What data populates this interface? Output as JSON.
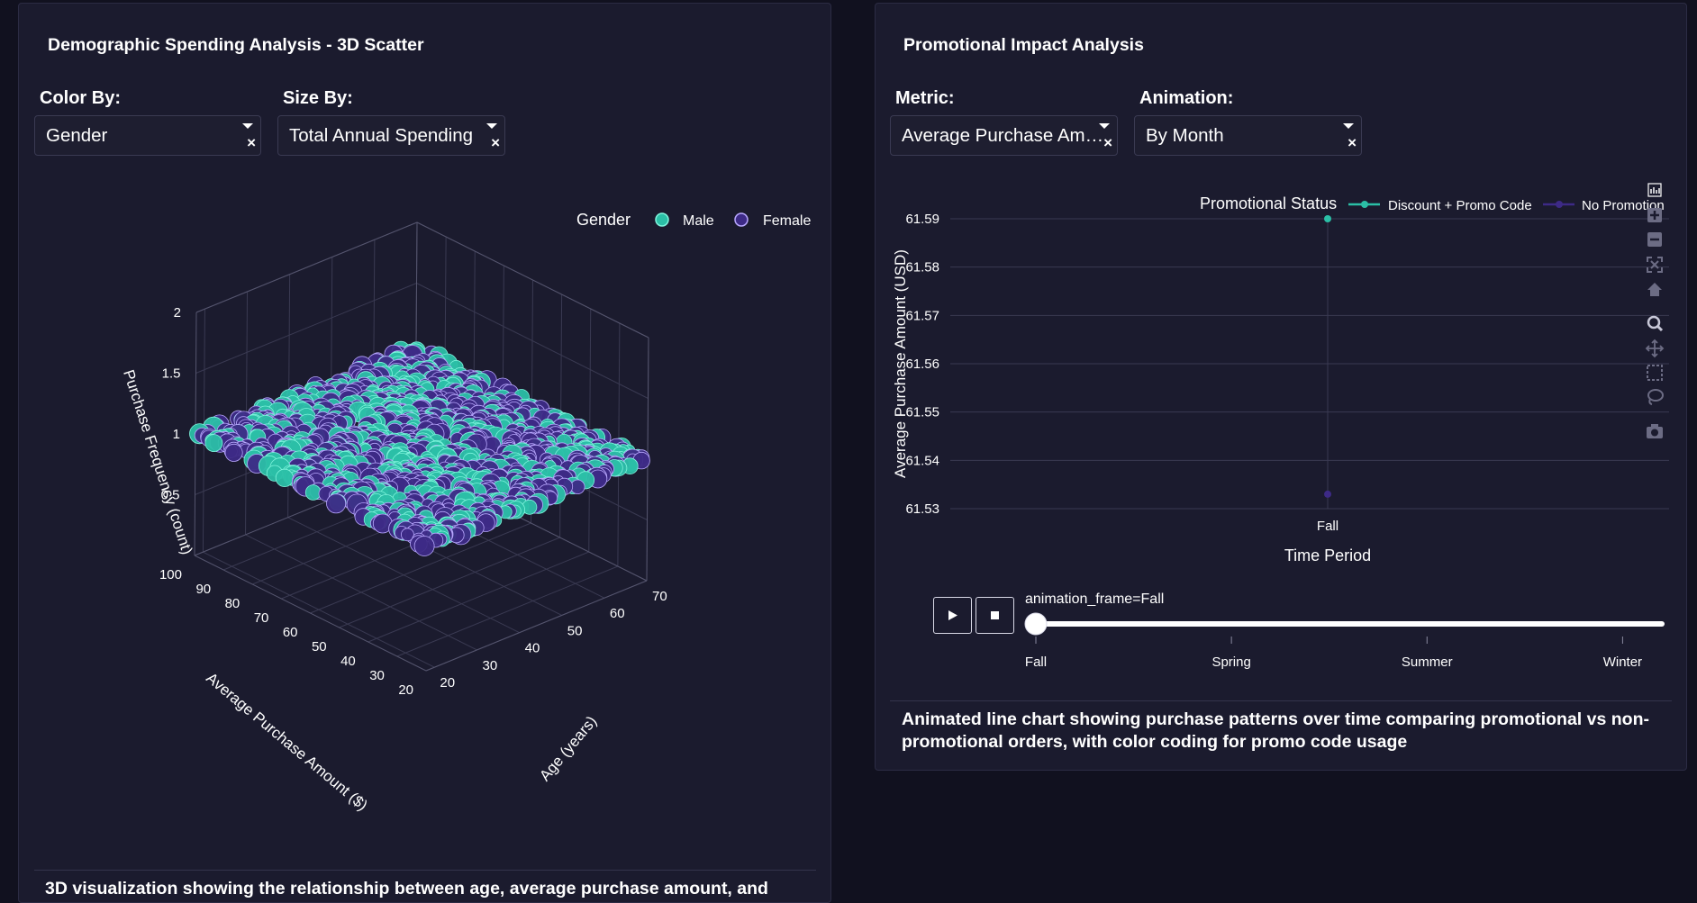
{
  "left_panel": {
    "title": "Demographic Spending Analysis - 3D Scatter",
    "color_by": {
      "label": "Color By:",
      "value": "Gender"
    },
    "size_by": {
      "label": "Size By:",
      "value": "Total Annual Spending"
    },
    "description": "3D visualization showing the relationship between age, average purchase amount, and"
  },
  "right_panel": {
    "title": "Promotional Impact Analysis",
    "metric": {
      "label": "Metric:",
      "value": "Average Purchase Amount (USD)"
    },
    "animation": {
      "label": "Animation:",
      "value": "By Month"
    },
    "description_line1": "Animated line chart showing purchase patterns over time comparing promotional vs non-",
    "description_line2": "promotional orders, with color coding for promo code usage",
    "slider": {
      "current_label": "animation_frame=Fall",
      "steps": [
        "Fall",
        "Spring",
        "Summer",
        "Winter"
      ],
      "value": "Fall"
    },
    "modebar_icons": [
      "plotly-logo-icon",
      "zoom-in-icon",
      "zoom-out-icon",
      "autoscale-icon",
      "home-icon",
      "zoom-icon",
      "pan-icon",
      "box-select-icon",
      "lasso-select-icon",
      "camera-icon"
    ]
  },
  "colors": {
    "male": "#2bbfa6",
    "female": "#3d2a86",
    "background": "#11111f",
    "panel": "#1b1b2e"
  },
  "chart_data": [
    {
      "type": "scatter",
      "subtype": "3d",
      "legend_title": "Gender",
      "series": [
        {
          "name": "Male"
        },
        {
          "name": "Female"
        }
      ],
      "xlabel": "Age (years)",
      "ylabel": "Average Purchase Amount ($)",
      "zlabel": "Purchase Frequency (count)",
      "x_ticks": [
        "20",
        "30",
        "40",
        "50",
        "60",
        "70"
      ],
      "y_ticks": [
        "20",
        "30",
        "40",
        "50",
        "60",
        "70",
        "80",
        "90",
        "100"
      ],
      "z_ticks": [
        "0.5",
        "1",
        "1.5",
        "2"
      ],
      "xlim": [
        18,
        70
      ],
      "ylim": [
        20,
        100
      ],
      "zlim": [
        0,
        2
      ],
      "z_value_all_points": 1,
      "legend_position": "top-right"
    },
    {
      "type": "line",
      "legend_title": "Promotional Status",
      "series": [
        {
          "name": "Discount + Promo Code",
          "x": [
            "Fall"
          ],
          "values": [
            61.59
          ]
        },
        {
          "name": "No Promotion",
          "x": [
            "Fall"
          ],
          "values": [
            61.533
          ]
        }
      ],
      "xlabel": "Time Period",
      "ylabel": "Average Purchase Amount (USD)",
      "categories": [
        "Fall"
      ],
      "y_ticks": [
        "61.53",
        "61.54",
        "61.55",
        "61.56",
        "61.57",
        "61.58",
        "61.59"
      ],
      "ylim": [
        61.53,
        61.59
      ],
      "grid": true,
      "legend_position": "top"
    }
  ]
}
